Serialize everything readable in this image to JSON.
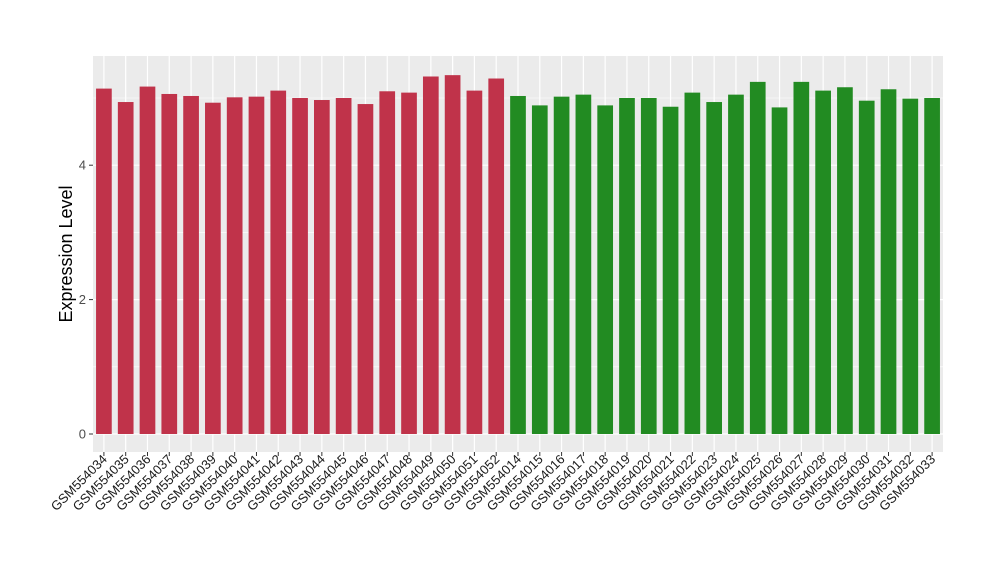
{
  "chart_data": {
    "type": "bar",
    "title": "",
    "xlabel": "",
    "ylabel": "Expression Level",
    "ylim": [
      0,
      5.6
    ],
    "yticks": [
      0,
      2,
      4
    ],
    "grid": true,
    "legend": "none",
    "categories": [
      "GSM554034",
      "GSM554035",
      "GSM554036",
      "GSM554037",
      "GSM554038",
      "GSM554039",
      "GSM554040",
      "GSM554041",
      "GSM554042",
      "GSM554043",
      "GSM554044",
      "GSM554045",
      "GSM554046",
      "GSM554047",
      "GSM554048",
      "GSM554049",
      "GSM554050",
      "GSM554051",
      "GSM554052",
      "GSM554014",
      "GSM554015",
      "GSM554016",
      "GSM554017",
      "GSM554018",
      "GSM554019",
      "GSM554020",
      "GSM554021",
      "GSM554022",
      "GSM554023",
      "GSM554024",
      "GSM554025",
      "GSM554026",
      "GSM554027",
      "GSM554028",
      "GSM554029",
      "GSM554030",
      "GSM554031",
      "GSM554032",
      "GSM554033"
    ],
    "values": [
      5.14,
      4.94,
      5.17,
      5.06,
      5.03,
      4.93,
      5.01,
      5.02,
      5.11,
      5.0,
      4.97,
      5.0,
      4.91,
      5.1,
      5.08,
      5.32,
      5.34,
      5.11,
      5.29,
      5.03,
      4.89,
      5.02,
      5.05,
      4.89,
      5.0,
      5.0,
      4.87,
      5.08,
      4.94,
      5.05,
      5.24,
      4.86,
      5.24,
      5.11,
      5.16,
      4.96,
      5.13,
      4.99,
      5.0
    ],
    "bar_colors": [
      "#c0334a",
      "#c0334a",
      "#c0334a",
      "#c0334a",
      "#c0334a",
      "#c0334a",
      "#c0334a",
      "#c0334a",
      "#c0334a",
      "#c0334a",
      "#c0334a",
      "#c0334a",
      "#c0334a",
      "#c0334a",
      "#c0334a",
      "#c0334a",
      "#c0334a",
      "#c0334a",
      "#c0334a",
      "#228b22",
      "#228b22",
      "#228b22",
      "#228b22",
      "#228b22",
      "#228b22",
      "#228b22",
      "#228b22",
      "#228b22",
      "#228b22",
      "#228b22",
      "#228b22",
      "#228b22",
      "#228b22",
      "#228b22",
      "#228b22",
      "#228b22",
      "#228b22",
      "#228b22",
      "#228b22"
    ],
    "panel_background": "#ebebeb",
    "grid_color": "#ffffff"
  }
}
